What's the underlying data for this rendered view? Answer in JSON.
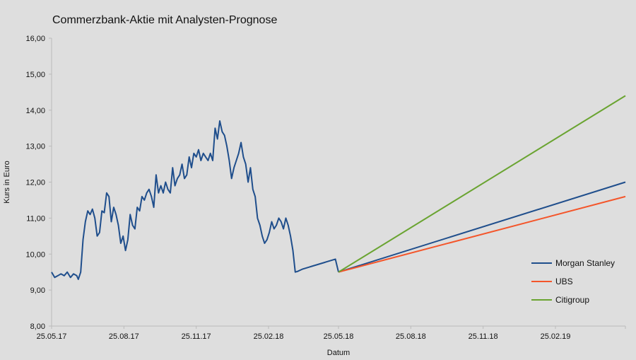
{
  "chart_data": {
    "type": "line",
    "title": "Commerzbank-Aktie mit Analysten-Prognose",
    "xlabel": "Datum",
    "ylabel": "Kurs in Euro",
    "ylim": [
      8,
      16
    ],
    "xlim": [
      "2017-05-25",
      "2019-05-25"
    ],
    "y_ticks": [
      "8,00",
      "9,00",
      "10,00",
      "11,00",
      "12,00",
      "13,00",
      "14,00",
      "15,00",
      "16,00"
    ],
    "x_ticks": [
      {
        "date": "2017-05-25",
        "label": "25.05.17"
      },
      {
        "date": "2017-08-25",
        "label": "25.08.17"
      },
      {
        "date": "2017-11-25",
        "label": "25.11.17"
      },
      {
        "date": "2018-02-25",
        "label": "25.02.18"
      },
      {
        "date": "2018-05-25",
        "label": "25.05.18"
      },
      {
        "date": "2018-08-25",
        "label": "25.08.18"
      },
      {
        "date": "2018-11-25",
        "label": "25.11.18"
      },
      {
        "date": "2019-02-25",
        "label": "25.02.19"
      }
    ],
    "grid": false,
    "legend_position": "bottom-right",
    "series": [
      {
        "name": "",
        "color": "#1f4e8c",
        "x": [
          "2017-05-25",
          "2017-05-29",
          "2017-06-02",
          "2017-06-06",
          "2017-06-10",
          "2017-06-14",
          "2017-06-18",
          "2017-06-22",
          "2017-06-26",
          "2017-06-28",
          "2017-07-01",
          "2017-07-04",
          "2017-07-07",
          "2017-07-10",
          "2017-07-13",
          "2017-07-16",
          "2017-07-19",
          "2017-07-22",
          "2017-07-25",
          "2017-07-28",
          "2017-07-31",
          "2017-08-03",
          "2017-08-06",
          "2017-08-09",
          "2017-08-12",
          "2017-08-15",
          "2017-08-18",
          "2017-08-21",
          "2017-08-24",
          "2017-08-27",
          "2017-08-30",
          "2017-09-02",
          "2017-09-05",
          "2017-09-08",
          "2017-09-11",
          "2017-09-14",
          "2017-09-17",
          "2017-09-20",
          "2017-09-23",
          "2017-09-26",
          "2017-09-29",
          "2017-10-02",
          "2017-10-05",
          "2017-10-08",
          "2017-10-11",
          "2017-10-14",
          "2017-10-17",
          "2017-10-20",
          "2017-10-23",
          "2017-10-26",
          "2017-10-29",
          "2017-11-01",
          "2017-11-04",
          "2017-11-07",
          "2017-11-10",
          "2017-11-13",
          "2017-11-16",
          "2017-11-19",
          "2017-11-22",
          "2017-11-25",
          "2017-11-28",
          "2017-12-01",
          "2017-12-04",
          "2017-12-07",
          "2017-12-10",
          "2017-12-13",
          "2017-12-16",
          "2017-12-19",
          "2017-12-22",
          "2017-12-25",
          "2017-12-28",
          "2017-12-31",
          "2018-01-03",
          "2018-01-06",
          "2018-01-09",
          "2018-01-12",
          "2018-01-15",
          "2018-01-18",
          "2018-01-21",
          "2018-01-24",
          "2018-01-27",
          "2018-01-30",
          "2018-02-02",
          "2018-02-05",
          "2018-02-08",
          "2018-02-11",
          "2018-02-14",
          "2018-02-17",
          "2018-02-20",
          "2018-02-23",
          "2018-02-26",
          "2018-03-01",
          "2018-03-04",
          "2018-03-07",
          "2018-03-10",
          "2018-03-13",
          "2018-03-16",
          "2018-03-19",
          "2018-03-22",
          "2018-03-25",
          "2018-03-28",
          "2018-03-31",
          "2018-04-03",
          "2018-04-06",
          "2018-04-09",
          "2018-04-12",
          "2018-04-15",
          "2018-04-18",
          "2018-04-21",
          "2018-04-24",
          "2018-04-27",
          "2018-04-30",
          "2018-05-03",
          "2018-05-06",
          "2018-05-09",
          "2018-05-12",
          "2018-05-15",
          "2018-05-18",
          "2018-05-21",
          "2018-05-25"
        ],
        "y": [
          9.5,
          9.35,
          9.4,
          9.45,
          9.4,
          9.5,
          9.35,
          9.45,
          9.4,
          9.3,
          9.5,
          10.4,
          10.9,
          11.2,
          11.1,
          11.25,
          11.0,
          10.5,
          10.6,
          11.2,
          11.15,
          11.7,
          11.6,
          10.9,
          11.3,
          11.1,
          10.8,
          10.3,
          10.5,
          10.1,
          10.4,
          11.1,
          10.8,
          10.7,
          11.3,
          11.2,
          11.6,
          11.5,
          11.7,
          11.8,
          11.6,
          11.3,
          12.2,
          11.7,
          11.9,
          11.7,
          12.0,
          11.8,
          11.7,
          12.4,
          11.9,
          12.1,
          12.2,
          12.5,
          12.1,
          12.2,
          12.7,
          12.4,
          12.8,
          12.7,
          12.9,
          12.6,
          12.8,
          12.7,
          12.6,
          12.8,
          12.6,
          13.5,
          13.2,
          13.7,
          13.4,
          13.3,
          13.0,
          12.6,
          12.1,
          12.4,
          12.6,
          12.8,
          13.1,
          12.7,
          12.5,
          12.0,
          12.4,
          11.8,
          11.6,
          11.0,
          10.8,
          10.5,
          10.3,
          10.4,
          10.6,
          10.9,
          10.7,
          10.8,
          11.0,
          10.9,
          10.7,
          11.0,
          10.8,
          10.5,
          10.1,
          9.5,
          9.52,
          9.55,
          9.58,
          9.6,
          9.62,
          9.64,
          9.66,
          9.68,
          9.7,
          9.72,
          9.74,
          9.76,
          9.78,
          9.8,
          9.82,
          9.84,
          9.86,
          9.5
        ]
      },
      {
        "name": "Morgan Stanley",
        "color": "#1f4e8c",
        "x": [
          "2018-05-25",
          "2019-05-25"
        ],
        "y": [
          9.5,
          12.0
        ]
      },
      {
        "name": "UBS",
        "color": "#f4552a",
        "x": [
          "2018-05-25",
          "2019-05-25"
        ],
        "y": [
          9.5,
          11.6
        ]
      },
      {
        "name": "Citigroup",
        "color": "#6aa431",
        "x": [
          "2018-05-25",
          "2019-05-25"
        ],
        "y": [
          9.5,
          14.4
        ]
      }
    ]
  }
}
